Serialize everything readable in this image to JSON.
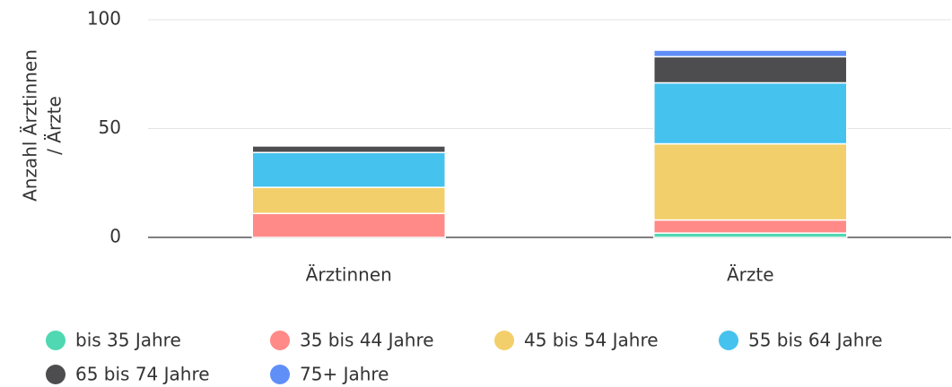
{
  "chart_data": {
    "type": "stacked_bar",
    "y_label": [
      "Anzahl Ärztinnen",
      "/ Ärzte"
    ],
    "categories": [
      "Ärztinnen",
      "Ärzte"
    ],
    "series": [
      {
        "name": "bis 35 Jahre",
        "color": "#4fd8b2",
        "values": [
          0,
          2
        ]
      },
      {
        "name": "35 bis 44 Jahre",
        "color": "#ff8a87",
        "values": [
          11,
          6
        ]
      },
      {
        "name": "45 bis 54 Jahre",
        "color": "#f3cf6b",
        "values": [
          12,
          35
        ]
      },
      {
        "name": "55 bis 64 Jahre",
        "color": "#45c2ee",
        "values": [
          16,
          28
        ]
      },
      {
        "name": "65 bis 74 Jahre",
        "color": "#4d4d4f",
        "values": [
          3,
          12
        ]
      },
      {
        "name": "75+ Jahre",
        "color": "#5f8ff7",
        "values": [
          0,
          3
        ]
      }
    ],
    "ylim": [
      0,
      100
    ],
    "yticks": [
      0,
      50,
      100
    ],
    "grid": true
  }
}
